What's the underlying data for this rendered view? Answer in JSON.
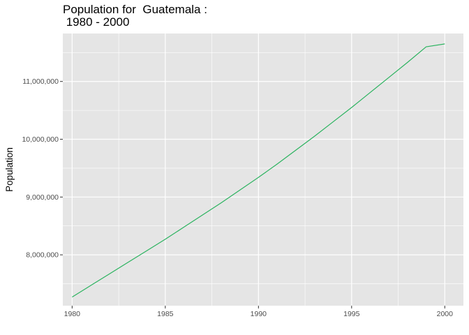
{
  "chart_data": {
    "type": "line",
    "title_line1": "Population for  Guatemala :",
    "title_line2": " 1980 - 2000",
    "xlabel": "",
    "ylabel": "Population",
    "xlim": [
      1979.5,
      2001
    ],
    "ylim": [
      7120000,
      11830000
    ],
    "x_ticks": [
      1980,
      1985,
      1990,
      1995,
      2000
    ],
    "x_tick_labels": [
      "1980",
      "1985",
      "1990",
      "1995",
      "2000"
    ],
    "x_minor_ticks": [
      1982.5,
      1987.5,
      1992.5,
      1997.5
    ],
    "y_ticks": [
      8000000,
      9000000,
      10000000,
      11000000
    ],
    "y_tick_labels": [
      "8,000,000",
      "9,000,000",
      "10,000,000",
      "11,000,000"
    ],
    "y_minor_ticks": [
      7500000,
      8500000,
      9500000,
      10500000,
      11500000
    ],
    "grid": true,
    "legend": "none",
    "colors": {
      "panel": "#e5e5e5",
      "grid": "#ffffff",
      "line": "#2bb35f"
    },
    "series": [
      {
        "x": [
          1980,
          1981,
          1982,
          1983,
          1984,
          1985,
          1986,
          1987,
          1988,
          1989,
          1990,
          1991,
          1992,
          1993,
          1994,
          1995,
          1996,
          1997,
          1998,
          1999,
          2000
        ],
        "values": [
          7270000,
          7470000,
          7670000,
          7870000,
          8070000,
          8270000,
          8480000,
          8690000,
          8900000,
          9120000,
          9340000,
          9570000,
          9810000,
          10050000,
          10300000,
          10550000,
          10810000,
          11070000,
          11330000,
          11600000,
          11650000
        ]
      }
    ]
  }
}
